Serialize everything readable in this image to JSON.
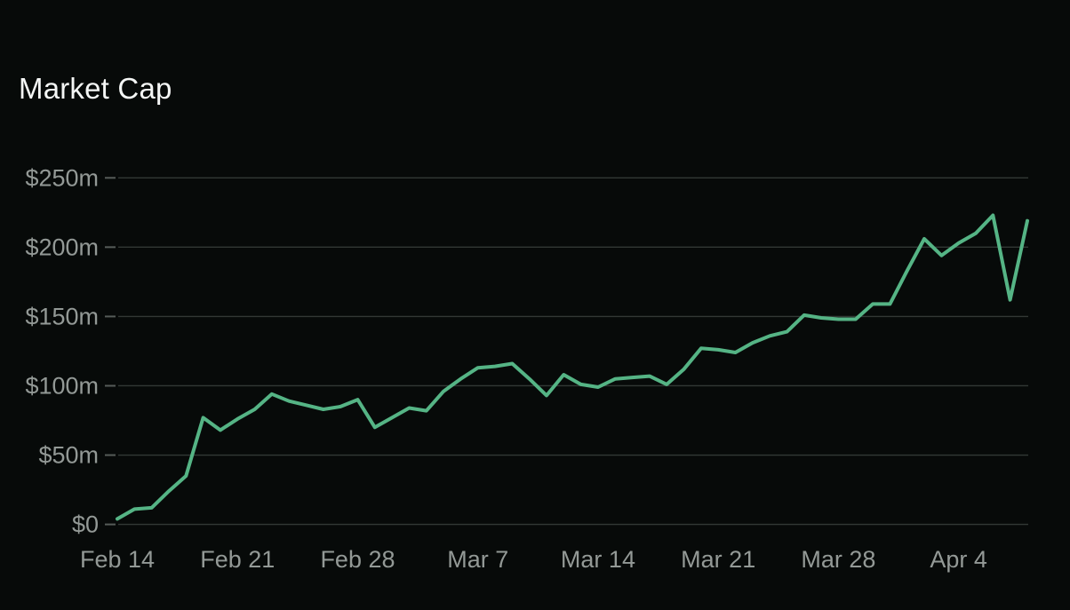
{
  "page": {
    "title": "Market Cap"
  },
  "colors": {
    "background": "#070a09",
    "title_text": "#f4f6f5",
    "axis_label": "#939996",
    "gridline": "#323835",
    "tick_mark": "#565c59",
    "line": "#55b485"
  },
  "chart_data": {
    "type": "line",
    "title": "Market Cap",
    "series_name": "Market Cap",
    "unit": "USD millions",
    "grid": "horizontal-only",
    "legend": "none",
    "ylim": [
      0,
      250
    ],
    "ytick_values": [
      0,
      50,
      100,
      150,
      200,
      250
    ],
    "ytick_labels": [
      "$0",
      "$50m",
      "$100m",
      "$150m",
      "$200m",
      "$250m"
    ],
    "xtick_labels": [
      "Feb 14",
      "Feb 21",
      "Feb 28",
      "Mar 7",
      "Mar 14",
      "Mar 21",
      "Mar 28",
      "Apr 4"
    ],
    "x": [
      "Feb 14",
      "Feb 15",
      "Feb 16",
      "Feb 17",
      "Feb 18",
      "Feb 19",
      "Feb 20",
      "Feb 21",
      "Feb 22",
      "Feb 23",
      "Feb 24",
      "Feb 25",
      "Feb 26",
      "Feb 27",
      "Feb 28",
      "Mar 1",
      "Mar 2",
      "Mar 3",
      "Mar 4",
      "Mar 5",
      "Mar 6",
      "Mar 7",
      "Mar 8",
      "Mar 9",
      "Mar 10",
      "Mar 11",
      "Mar 12",
      "Mar 13",
      "Mar 14",
      "Mar 15",
      "Mar 16",
      "Mar 17",
      "Mar 18",
      "Mar 19",
      "Mar 20",
      "Mar 21",
      "Mar 22",
      "Mar 23",
      "Mar 24",
      "Mar 25",
      "Mar 26",
      "Mar 27",
      "Mar 28",
      "Mar 29",
      "Mar 30",
      "Mar 31",
      "Apr 1",
      "Apr 2",
      "Apr 3",
      "Apr 4",
      "Apr 5",
      "Apr 6",
      "Apr 7",
      "Apr 8"
    ],
    "values": [
      4,
      11,
      12,
      24,
      35,
      77,
      68,
      76,
      83,
      94,
      89,
      86,
      83,
      85,
      90,
      70,
      77,
      84,
      82,
      96,
      105,
      113,
      114,
      116,
      105,
      93,
      108,
      101,
      99,
      105,
      106,
      107,
      101,
      112,
      127,
      126,
      124,
      131,
      136,
      139,
      151,
      149,
      148,
      148,
      159,
      159,
      183,
      206,
      194,
      203,
      210,
      223,
      162,
      219
    ]
  }
}
